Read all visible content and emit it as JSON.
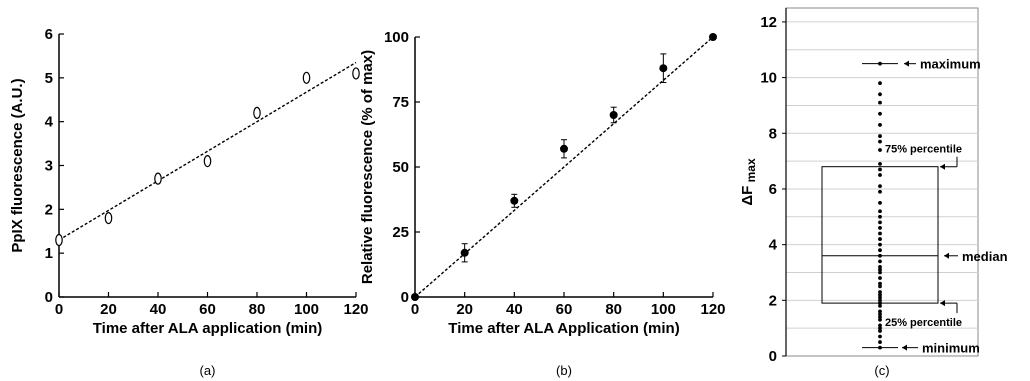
{
  "chart_data": [
    {
      "type": "scatter",
      "panel_label": "(a)",
      "xlabel": "Time after ALA application (min)",
      "ylabel": "PpIX fluorescence  (A.U.)",
      "xlim": [
        0,
        120
      ],
      "ylim": [
        0,
        6
      ],
      "x_ticks": [
        "0",
        "20",
        "40",
        "60",
        "80",
        "100",
        "120"
      ],
      "y_ticks": [
        "0",
        "1",
        "2",
        "3",
        "4",
        "5",
        "6"
      ],
      "grid": false,
      "marker": "open-ellipse",
      "series": [
        {
          "x": [
            0,
            20,
            40,
            60,
            80,
            100,
            120
          ],
          "y": [
            1.3,
            1.8,
            2.7,
            3.1,
            4.2,
            5.0,
            5.1
          ]
        }
      ],
      "fit_line": {
        "x": [
          0,
          120
        ],
        "y": [
          1.3,
          5.35
        ]
      }
    },
    {
      "type": "scatter",
      "panel_label": "(b)",
      "xlabel": "Time after ALA Application (min)",
      "ylabel": "Relative fluorescence (% of max)",
      "xlim": [
        0,
        120
      ],
      "ylim": [
        0,
        100
      ],
      "x_ticks": [
        "0",
        "20",
        "40",
        "60",
        "80",
        "100",
        "120"
      ],
      "y_ticks": [
        "0",
        "25",
        "50",
        "75",
        "100"
      ],
      "grid": false,
      "marker": "filled-circle",
      "series": [
        {
          "x": [
            0,
            20,
            40,
            60,
            80,
            100,
            120
          ],
          "y": [
            0,
            17,
            37,
            57,
            70,
            88,
            100
          ],
          "err": [
            0,
            3.5,
            2.5,
            3.5,
            3,
            5.5,
            0
          ]
        }
      ],
      "fit_line": {
        "x": [
          0,
          120
        ],
        "y": [
          0,
          100
        ]
      }
    },
    {
      "type": "box",
      "panel_label": "(c)",
      "ylabel": "ΔF",
      "ylabel_sub": "max",
      "ylim": [
        0,
        12.5
      ],
      "y_ticks": [
        "0",
        "2",
        "4",
        "6",
        "8",
        "10",
        "12"
      ],
      "grid": true,
      "box": {
        "min": 0.3,
        "q1": 1.9,
        "median": 3.6,
        "q3": 6.8,
        "max": 10.5
      },
      "annotations": {
        "maximum": "maximum",
        "q3": "75% percentile",
        "median": "median",
        "q1": "25% percentile",
        "minimum": "minimum"
      },
      "points": [
        0.3,
        0.5,
        0.7,
        0.9,
        1.0,
        1.1,
        1.3,
        1.4,
        1.5,
        1.6,
        1.8,
        1.9,
        2.0,
        2.1,
        2.2,
        2.3,
        2.5,
        2.6,
        2.8,
        3.0,
        3.1,
        3.2,
        3.4,
        3.6,
        3.8,
        4.0,
        4.2,
        4.4,
        4.6,
        4.8,
        5.0,
        5.2,
        5.5,
        5.9,
        6.1,
        6.5,
        6.7,
        6.9,
        7.4,
        7.7,
        7.9,
        8.3,
        8.7,
        9.1,
        9.4,
        9.8,
        10.5
      ]
    }
  ]
}
